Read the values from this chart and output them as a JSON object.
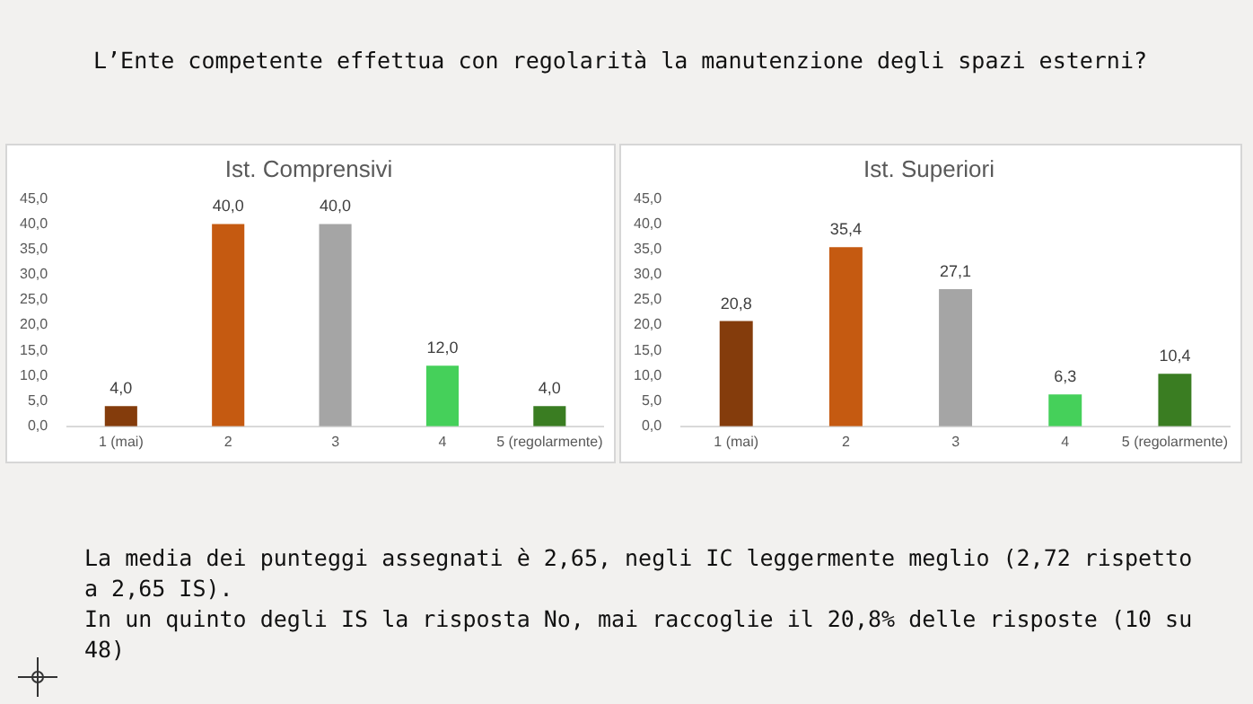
{
  "chart_data": [
    {
      "type": "bar",
      "title": "Ist. Comprensivi",
      "annotations": [
        "L’Ente competente effettua con regolarità la manutenzione degli spazi esterni?"
      ],
      "categories": [
        "1 (mai)",
        "2",
        "3",
        "4",
        "5 (regolarmente)"
      ],
      "values": [
        4.0,
        40.0,
        40.0,
        12.0,
        4.0
      ],
      "value_labels": [
        "4,0",
        "40,0",
        "40,0",
        "12,0",
        "4,0"
      ],
      "colors": [
        "#843c0c",
        "#c55a11",
        "#a5a5a5",
        "#45d05a",
        "#3a7d22"
      ],
      "ylim": [
        0,
        45
      ],
      "yticks": [
        {
          "value": 0,
          "label": "0,0"
        },
        {
          "value": 5,
          "label": "5,0"
        },
        {
          "value": 10,
          "label": "10,0"
        },
        {
          "value": 15,
          "label": "15,0"
        },
        {
          "value": 20,
          "label": "20,0"
        },
        {
          "value": 25,
          "label": "25,0"
        },
        {
          "value": 30,
          "label": "30,0"
        },
        {
          "value": 35,
          "label": "35,0"
        },
        {
          "value": 40,
          "label": "40,0"
        },
        {
          "value": 45,
          "label": "45,0"
        }
      ]
    },
    {
      "type": "bar",
      "title": "Ist. Superiori",
      "annotations": [
        "La media dei punteggi assegnati è 2,65, negli IC leggermente meglio (2,72 rispetto a 2,65 IS).",
        "In un quinto degli IS la risposta No, mai raccoglie il 20,8% delle risposte (10 su 48)"
      ],
      "categories": [
        "1 (mai)",
        "2",
        "3",
        "4",
        "5 (regolarmente)"
      ],
      "values": [
        20.8,
        35.4,
        27.1,
        6.3,
        10.4
      ],
      "value_labels": [
        "20,8",
        "35,4",
        "27,1",
        "6,3",
        "10,4"
      ],
      "colors": [
        "#843c0c",
        "#c55a11",
        "#a5a5a5",
        "#45d05a",
        "#3a7d22"
      ],
      "ylim": [
        0,
        45
      ],
      "yticks": [
        {
          "value": 0,
          "label": "0,0"
        },
        {
          "value": 5,
          "label": "5,0"
        },
        {
          "value": 10,
          "label": "10,0"
        },
        {
          "value": 15,
          "label": "15,0"
        },
        {
          "value": 20,
          "label": "20,0"
        },
        {
          "value": 25,
          "label": "25,0"
        },
        {
          "value": 30,
          "label": "30,0"
        },
        {
          "value": 35,
          "label": "35,0"
        },
        {
          "value": 40,
          "label": "40,0"
        },
        {
          "value": 45,
          "label": "45,0"
        }
      ]
    }
  ]
}
